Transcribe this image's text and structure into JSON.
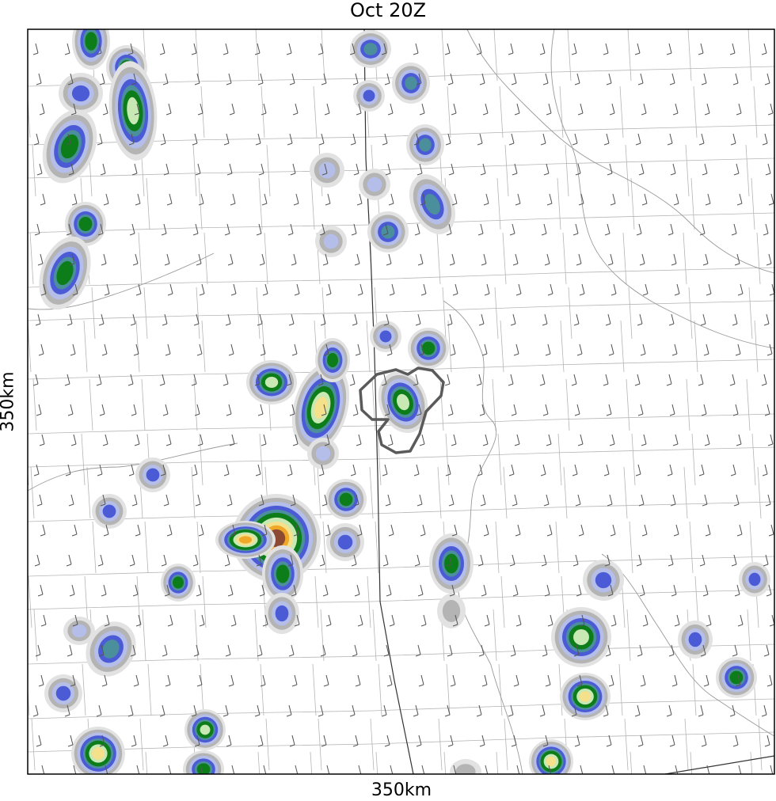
{
  "title": "Oct 20Z",
  "xlabel": "350km",
  "ylabel": "350km",
  "colors": {
    "light_gray": "#e2e2e2",
    "mid_gray": "#b4b4b4",
    "dark_gray": "#8c8c8c",
    "light_blue": "#b4bee8",
    "blue": "#4b5bd6",
    "teal": "#4c8f9c",
    "green": "#0d7d1a",
    "light_green": "#c8e8b4",
    "yellow": "#f5e08c",
    "orange": "#f0a828",
    "brown": "#8c4a32",
    "county_line": "#b5b5b5",
    "state_line": "#9a9a9a",
    "boundary": "#333333",
    "barb": "#555555",
    "contour": "#555555"
  },
  "storms": [
    {
      "name": "cell-nw-top",
      "peak": "green"
    },
    {
      "name": "cell-center-big",
      "peak": "brown"
    },
    {
      "name": "cell-center-north",
      "peak": "yellow"
    },
    {
      "name": "cell-outlined",
      "peak": "light_green"
    },
    {
      "name": "cell-southwest",
      "peak": "yellow"
    },
    {
      "name": "cell-southeast",
      "peak": "yellow"
    }
  ]
}
